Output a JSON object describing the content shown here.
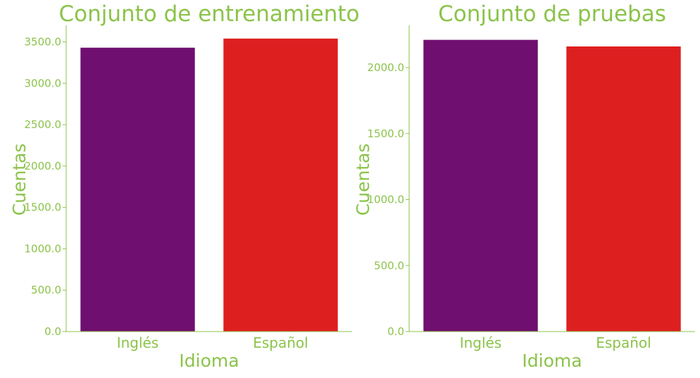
{
  "colors": {
    "text": "#8bc34a",
    "axis": "#8bc34a",
    "bar_ingles": "#6f0f6f",
    "bar_espanol": "#de1f20",
    "background": "#ffffff"
  },
  "chart_data": [
    {
      "type": "bar",
      "title": "Conjunto de entrenamiento",
      "xlabel": "Idioma",
      "ylabel": "Cuentas",
      "categories": [
        "Inglés",
        "Español"
      ],
      "values": [
        3430,
        3540
      ],
      "ylim": [
        0,
        3700
      ],
      "yticks": [
        0,
        500,
        1000,
        1500,
        2000,
        2500,
        3000,
        3500
      ],
      "ytick_labels": [
        "0.0",
        "500.0",
        "1000.0",
        "1500.0",
        "2000.0",
        "2500.0",
        "3000.0",
        "3500.0"
      ],
      "grid": false,
      "legend": "none"
    },
    {
      "type": "bar",
      "title": "Conjunto de pruebas",
      "xlabel": "Idioma",
      "ylabel": "Cuentas",
      "categories": [
        "Inglés",
        "Español"
      ],
      "values": [
        2210,
        2160
      ],
      "ylim": [
        0,
        2320
      ],
      "yticks": [
        0,
        500,
        1000,
        1500,
        2000
      ],
      "ytick_labels": [
        "0.0",
        "500.0",
        "1000.0",
        "1500.0",
        "2000.0"
      ],
      "grid": false,
      "legend": "none"
    }
  ]
}
